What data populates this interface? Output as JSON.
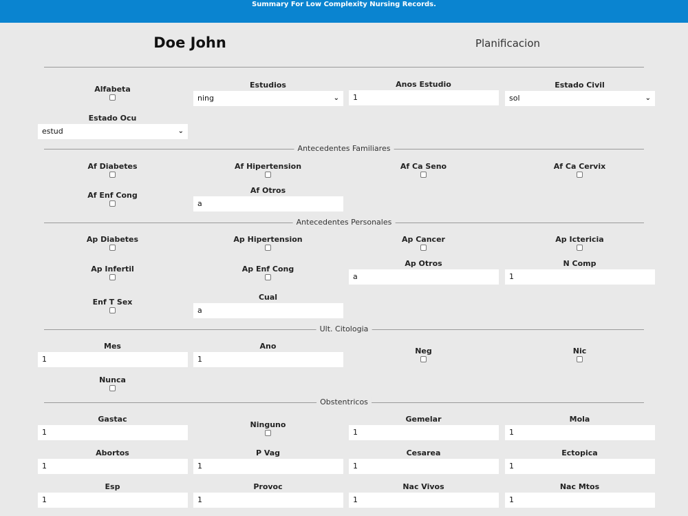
{
  "header": {
    "subtitle": "Summary For Low Complexity Nursing Records."
  },
  "patient": {
    "name": "Doe John"
  },
  "section_tab": "Planificacion",
  "fields": {
    "alfabeta": "Alfabeta",
    "estudios": {
      "label": "Estudios",
      "value": "ning"
    },
    "anos_estudio": {
      "label": "Anos Estudio",
      "value": "1"
    },
    "estado_civil": {
      "label": "Estado Civil",
      "value": "sol"
    },
    "estado_ocu": {
      "label": "Estado Ocu",
      "value": "estud"
    }
  },
  "familiares": {
    "title": "Antecedentes Familiares",
    "af_diabetes": "Af Diabetes",
    "af_hipertension": "Af Hipertension",
    "af_ca_seno": "Af Ca Seno",
    "af_ca_cervix": "Af Ca Cervix",
    "af_enf_cong": "Af Enf Cong",
    "af_otros": {
      "label": "Af Otros",
      "value": "a"
    }
  },
  "personales": {
    "title": "Antecedentes Personales",
    "ap_diabetes": "Ap Diabetes",
    "ap_hipertension": "Ap Hipertension",
    "ap_cancer": "Ap Cancer",
    "ap_ictericia": "Ap Ictericia",
    "ap_infertil": "Ap Infertil",
    "ap_enf_cong": "Ap Enf Cong",
    "ap_otros": {
      "label": "Ap Otros",
      "value": "a"
    },
    "n_comp": {
      "label": "N Comp",
      "value": "1"
    },
    "enf_t_sex": "Enf T Sex",
    "cual": {
      "label": "Cual",
      "value": "a"
    }
  },
  "citologia": {
    "title": "Ult. Citologia",
    "mes": {
      "label": "Mes",
      "value": "1"
    },
    "ano": {
      "label": "Ano",
      "value": "1"
    },
    "neg": "Neg",
    "nic": "Nic",
    "nunca": "Nunca"
  },
  "obstetricos": {
    "title": "Obstentricos",
    "gastac": {
      "label": "Gastac",
      "value": "1"
    },
    "ninguno": "Ninguno",
    "gemelar": {
      "label": "Gemelar",
      "value": "1"
    },
    "mola": {
      "label": "Mola",
      "value": "1"
    },
    "abortos": {
      "label": "Abortos",
      "value": "1"
    },
    "p_vag": {
      "label": "P Vag",
      "value": "1"
    },
    "cesarea": {
      "label": "Cesarea",
      "value": "1"
    },
    "ectopica": {
      "label": "Ectopica",
      "value": "1"
    },
    "esp": {
      "label": "Esp",
      "value": "1"
    },
    "provoc": {
      "label": "Provoc",
      "value": "1"
    },
    "nac_vivos": {
      "label": "Nac Vivos",
      "value": "1"
    },
    "nac_mtos": {
      "label": "Nac Mtos",
      "value": "1"
    }
  }
}
